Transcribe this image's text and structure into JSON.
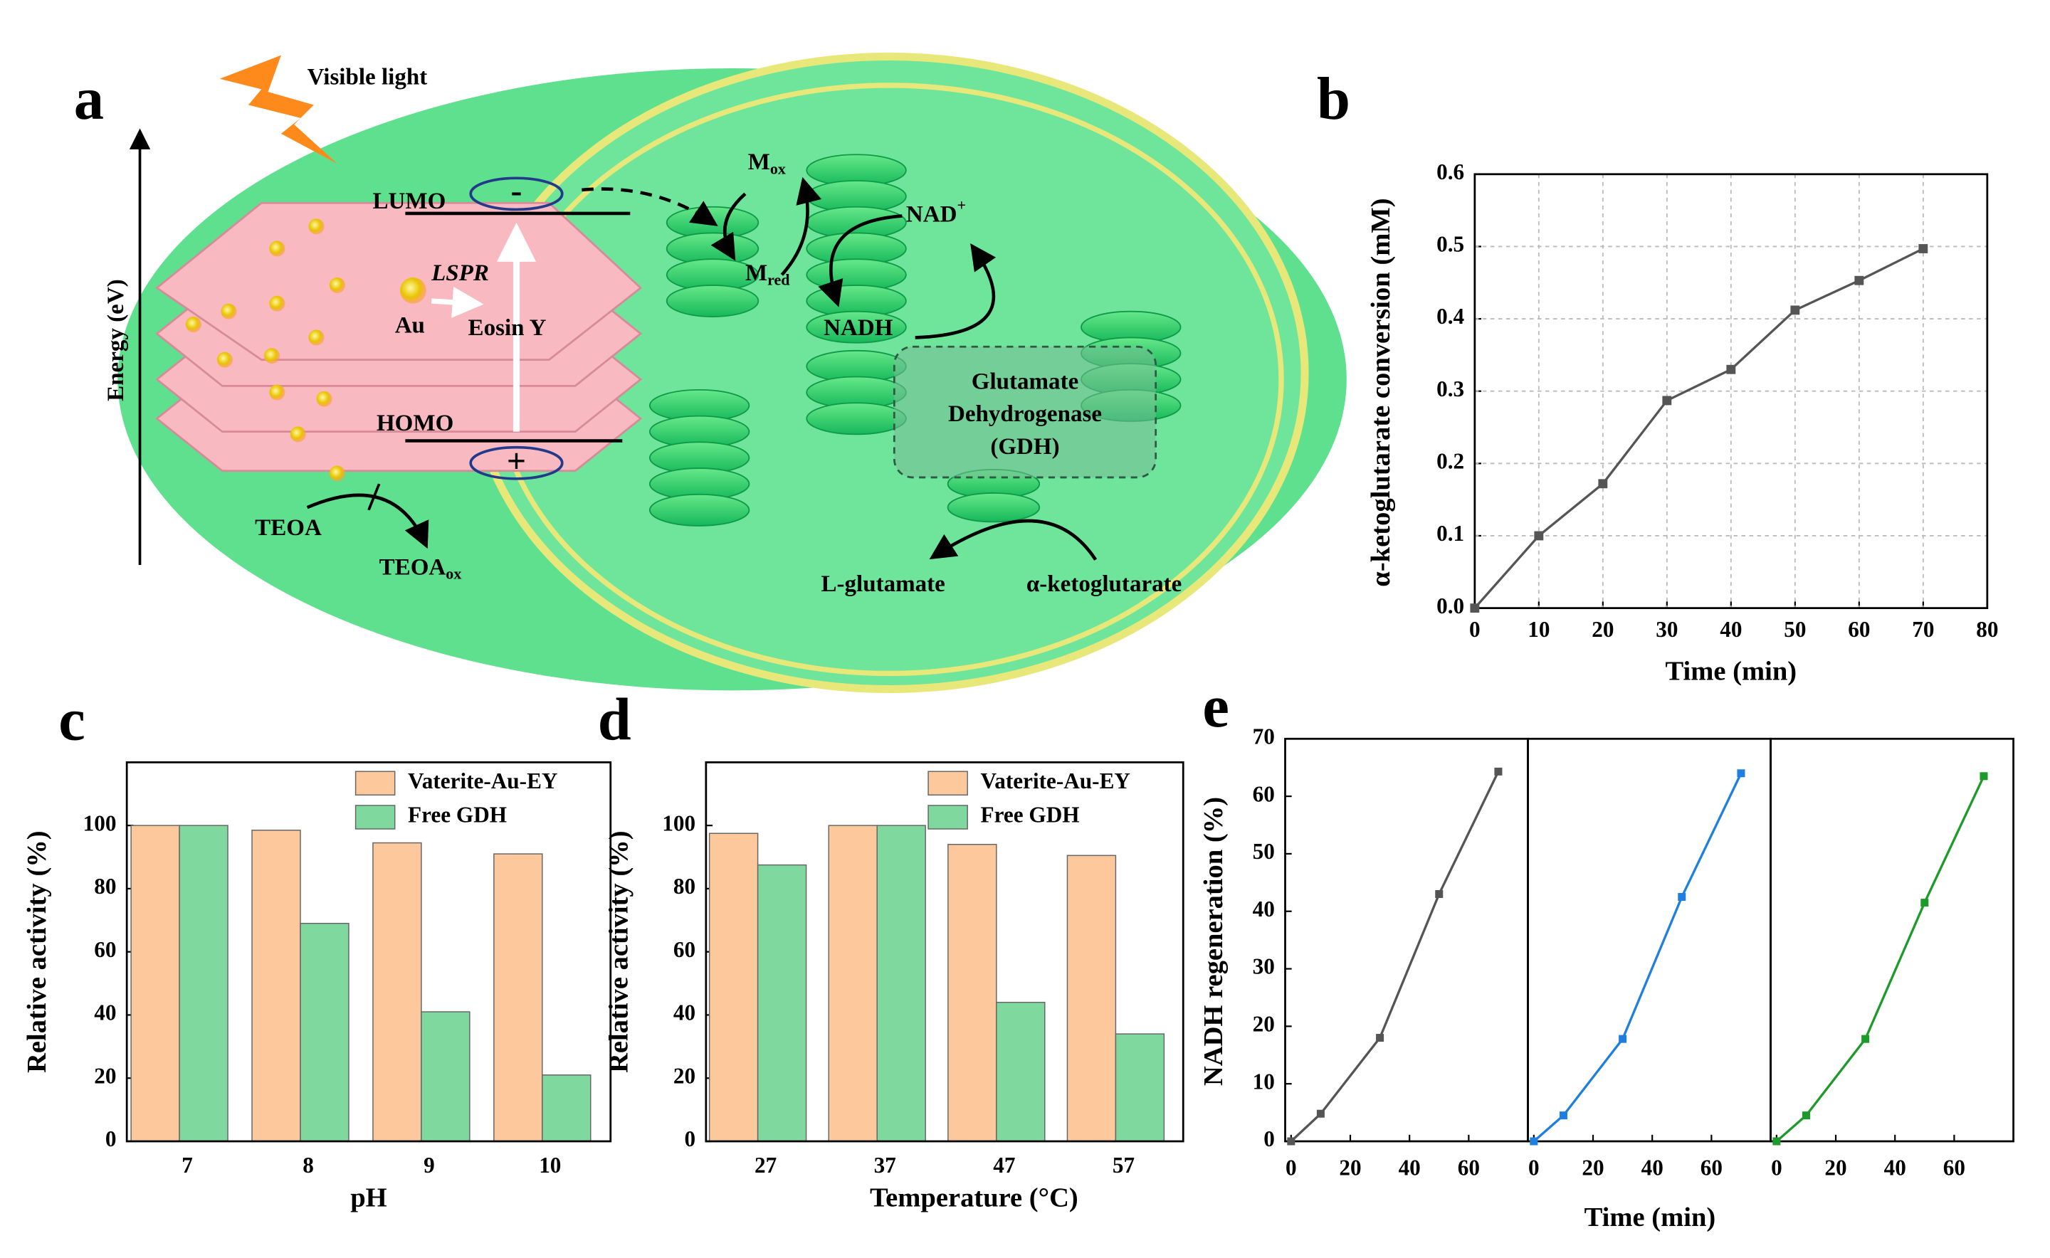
{
  "diagram": {
    "panel": "a",
    "light": "Visible light",
    "energy": "Energy (eV)",
    "lumo": "LUMO",
    "homo": "HOMO",
    "minus": "-",
    "plus": "+",
    "lspr": "LSPR",
    "au": "Au",
    "eosin": "Eosin Y",
    "teoa": "TEOA",
    "teoa_ox": {
      "text": "TEOA",
      "sub": "ox"
    },
    "m_ox": {
      "text": "M",
      "sub": "ox"
    },
    "m_red": {
      "text": "M",
      "sub": "red"
    },
    "nad": {
      "text": "NAD",
      "sup": "+"
    },
    "nadh": "NADH",
    "enzyme": [
      "Glutamate",
      "Dehydrogenase",
      "(GDH)"
    ],
    "product": "L-glutamate",
    "substrate": "α-ketoglutarate"
  },
  "chart_data": [
    {
      "type": "line",
      "panel": "b",
      "x_label": "Time (min)",
      "y_label": "α-ketoglutarate conversion (mM)",
      "x": [
        0,
        10,
        20,
        30,
        40,
        50,
        60,
        70
      ],
      "values": [
        0,
        0.1,
        0.172,
        0.287,
        0.33,
        0.412,
        0.453,
        0.497
      ],
      "color": "#555555",
      "xlim": [
        0,
        80
      ],
      "xticks": [
        0,
        10,
        20,
        30,
        40,
        50,
        60,
        70,
        80
      ],
      "ylim": [
        0,
        0.6
      ],
      "yticks": [
        {
          "value": 0,
          "label": "0.0"
        },
        0.1,
        0.2,
        0.3,
        0.4,
        0.5,
        0.6
      ],
      "grid": true
    },
    {
      "type": "bar",
      "panel": "c",
      "x_label": "pH",
      "y_label": "Relative activity (%)",
      "categories": [
        "7",
        "8",
        "9",
        "10"
      ],
      "series": [
        {
          "name": "Vaterite-Au-EY",
          "color": "#fdc89c",
          "values": [
            100,
            98.5,
            94.5,
            91
          ]
        },
        {
          "name": "Free GDH",
          "color": "#7fd89e",
          "values": [
            100,
            69,
            41,
            21
          ]
        }
      ],
      "ylim": [
        0,
        120
      ],
      "yticks": [
        0,
        20,
        40,
        60,
        80,
        100
      ],
      "legend": "top-right"
    },
    {
      "type": "bar",
      "panel": "d",
      "x_label": "Temperature (°C)",
      "y_label": "Relative activity (%)",
      "categories": [
        "27",
        "37",
        "47",
        "57"
      ],
      "series": [
        {
          "name": "Vaterite-Au-EY",
          "color": "#fdc89c",
          "values": [
            97.5,
            100,
            94,
            90.5
          ]
        },
        {
          "name": "Free GDH",
          "color": "#7fd89e",
          "values": [
            87.5,
            100,
            44,
            34
          ]
        }
      ],
      "ylim": [
        0,
        120
      ],
      "yticks": [
        0,
        20,
        40,
        60,
        80,
        100
      ],
      "legend": "top-right"
    },
    {
      "type": "multiline",
      "panel": "e",
      "x_label": "Time (min)",
      "y_label": "NADH regeneration (%)",
      "x": [
        0,
        10,
        30,
        50,
        70
      ],
      "series": [
        {
          "color": "#555555",
          "values": [
            0,
            4.8,
            18,
            43,
            64.3
          ]
        },
        {
          "color": "#1f7fe0",
          "values": [
            0,
            4.5,
            17.8,
            42.5,
            64
          ]
        },
        {
          "color": "#1c9a2a",
          "values": [
            0,
            4.5,
            17.8,
            41.5,
            63.5
          ]
        }
      ],
      "xlim": [
        -2,
        80
      ],
      "xticks": [
        0,
        20,
        40,
        60
      ],
      "ylim": [
        0,
        70
      ],
      "yticks": [
        0,
        10,
        20,
        30,
        40,
        50,
        60,
        70
      ]
    }
  ]
}
